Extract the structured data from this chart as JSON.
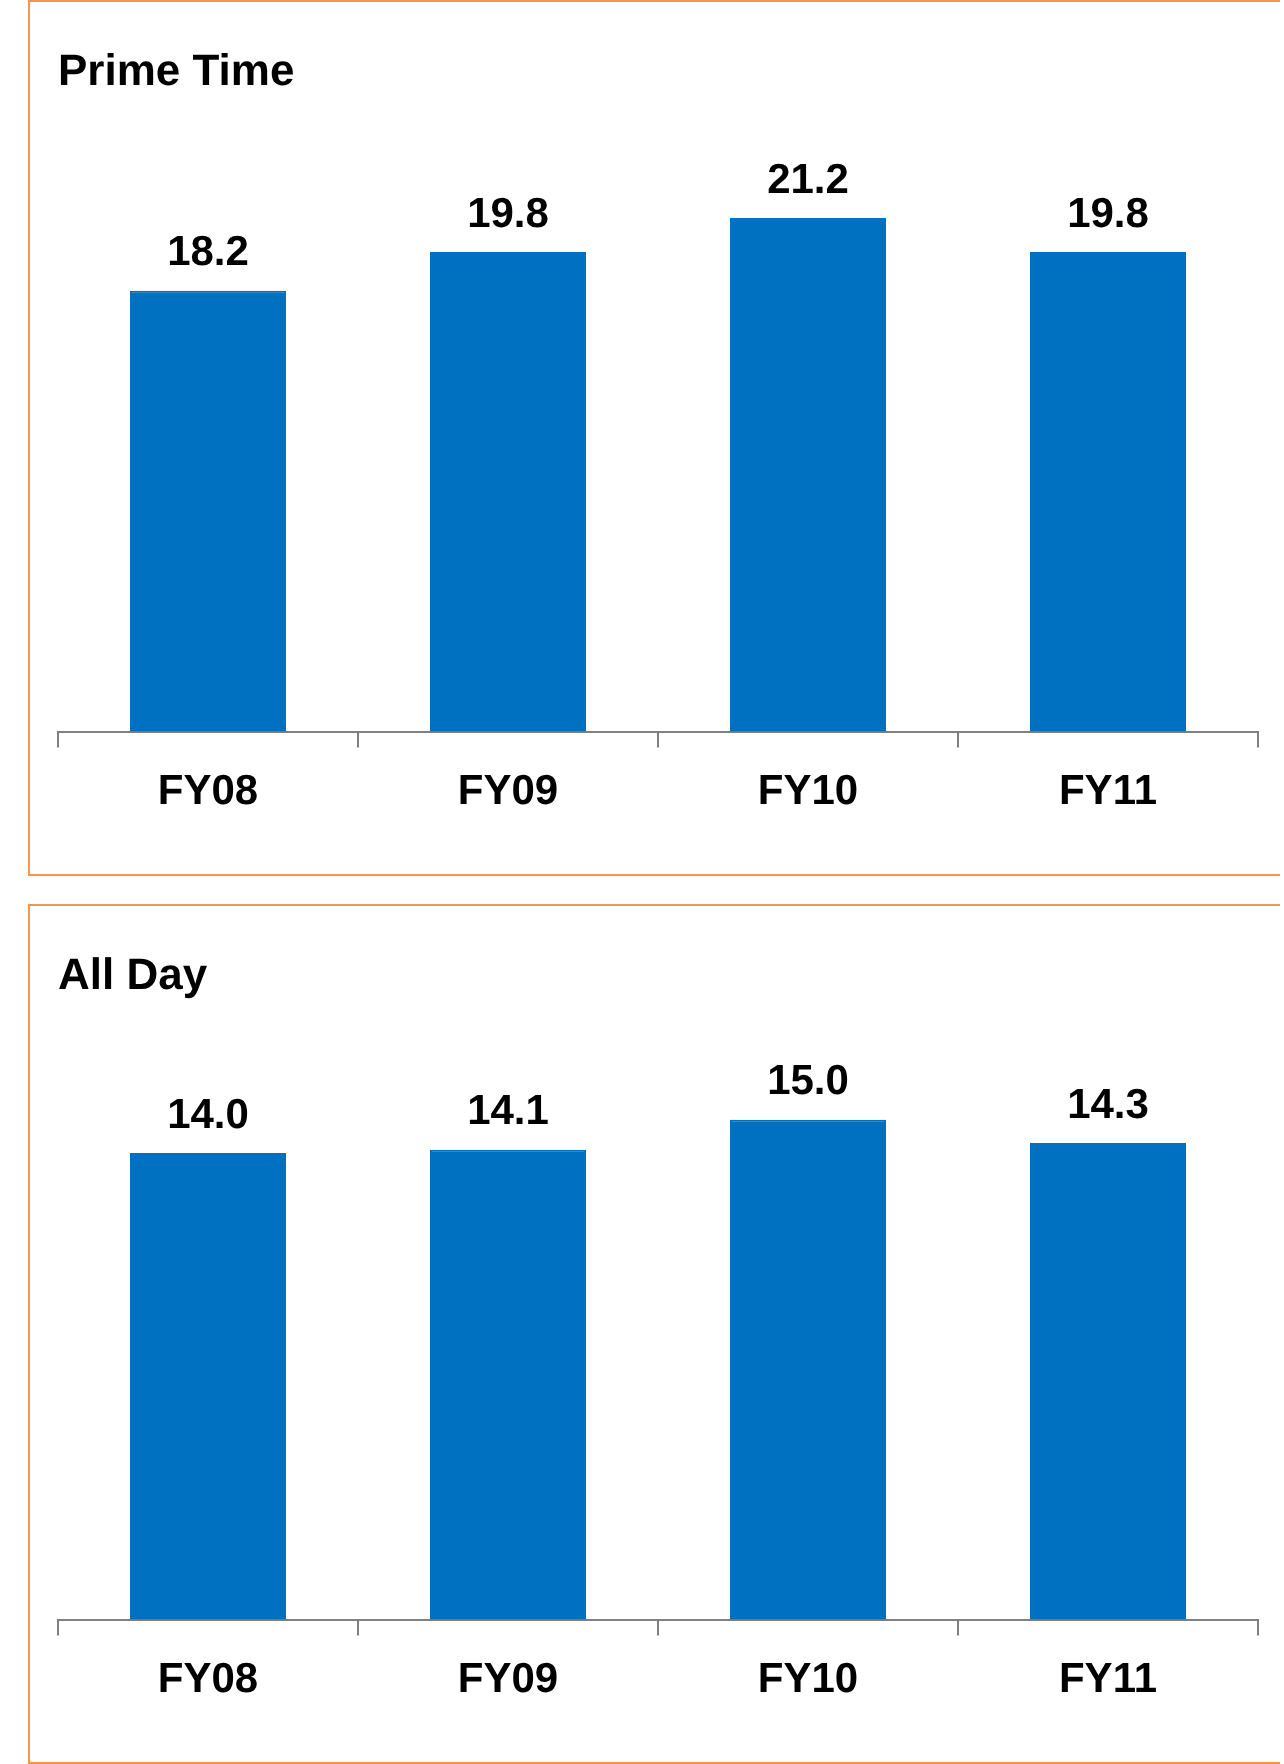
{
  "chart_data": [
    {
      "type": "bar",
      "title": "Prime Time",
      "categories": [
        "FY08",
        "FY09",
        "FY10",
        "FY11"
      ],
      "values": [
        18.2,
        19.8,
        21.2,
        19.8
      ],
      "color": "#0070c0",
      "data_labels": true,
      "legend": false
    },
    {
      "type": "bar",
      "title": "All Day",
      "categories": [
        "FY08",
        "FY09",
        "FY10",
        "FY11"
      ],
      "values": [
        14.0,
        14.1,
        15.0,
        14.3
      ],
      "value_labels": [
        "14.0",
        "14.1",
        "15.0",
        "14.3"
      ],
      "color": "#0070c0",
      "legend": false
    }
  ]
}
